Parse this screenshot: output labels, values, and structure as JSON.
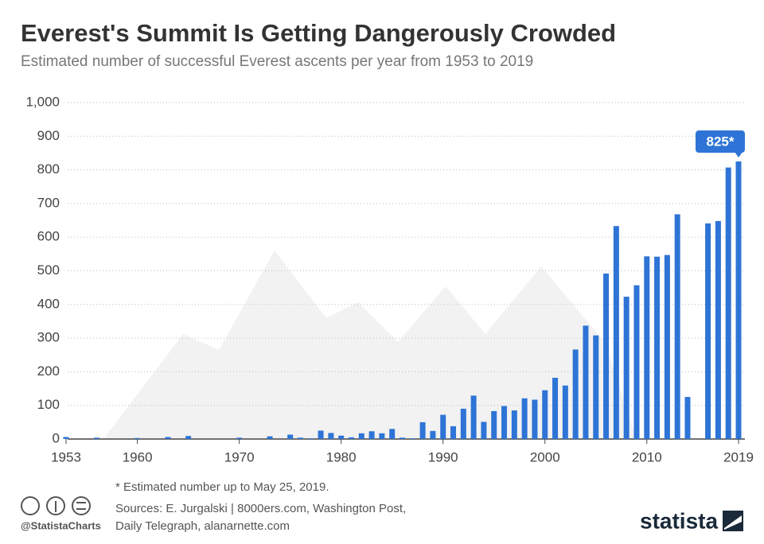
{
  "chart_data": {
    "type": "bar",
    "title": "Everest's Summit Is Getting Dangerously Crowded",
    "subtitle": "Estimated number of successful Everest ascents per year from 1953 to 2019",
    "x": [
      1953,
      1954,
      1955,
      1956,
      1957,
      1958,
      1959,
      1960,
      1961,
      1962,
      1963,
      1964,
      1965,
      1966,
      1967,
      1968,
      1969,
      1970,
      1971,
      1972,
      1973,
      1974,
      1975,
      1976,
      1977,
      1978,
      1979,
      1980,
      1981,
      1982,
      1983,
      1984,
      1985,
      1986,
      1987,
      1988,
      1989,
      1990,
      1991,
      1992,
      1993,
      1994,
      1995,
      1996,
      1997,
      1998,
      1999,
      2000,
      2001,
      2002,
      2003,
      2004,
      2005,
      2006,
      2007,
      2008,
      2009,
      2010,
      2011,
      2012,
      2013,
      2014,
      2015,
      2016,
      2017,
      2018,
      2019
    ],
    "values": [
      6,
      0,
      0,
      4,
      0,
      0,
      0,
      3,
      0,
      0,
      6,
      0,
      9,
      0,
      0,
      0,
      0,
      4,
      0,
      0,
      8,
      0,
      13,
      4,
      2,
      25,
      18,
      10,
      5,
      17,
      23,
      17,
      30,
      4,
      2,
      50,
      24,
      72,
      38,
      90,
      129,
      51,
      83,
      98,
      85,
      121,
      117,
      145,
      182,
      159,
      266,
      337,
      308,
      492,
      633,
      423,
      457,
      543,
      542,
      547,
      668,
      125,
      0,
      641,
      648,
      807,
      825
    ],
    "value_labels": [
      null,
      null,
      null,
      null,
      null,
      null,
      null,
      null,
      null,
      null,
      null,
      null,
      null,
      null,
      null,
      null,
      null,
      null,
      null,
      null,
      null,
      null,
      null,
      null,
      null,
      null,
      null,
      null,
      null,
      null,
      null,
      null,
      null,
      null,
      null,
      null,
      null,
      null,
      null,
      null,
      null,
      null,
      null,
      null,
      null,
      null,
      null,
      null,
      null,
      null,
      null,
      null,
      null,
      null,
      null,
      null,
      null,
      null,
      null,
      null,
      null,
      null,
      null,
      null,
      null,
      null,
      "825*"
    ],
    "color": "#2e74d6",
    "xlim": [
      1953,
      2019
    ],
    "xticks": [
      1953,
      1960,
      1970,
      1980,
      1990,
      2000,
      2010,
      2019
    ],
    "ylim": [
      0,
      1000
    ],
    "yticks": [
      0,
      100,
      200,
      300,
      400,
      500,
      600,
      700,
      800,
      900,
      {
        "value": 1000,
        "label": "1,000"
      }
    ],
    "grid": true,
    "footnote": "* Estimated number up to May 25, 2019.",
    "sources": [
      "Sources: E. Jurgalski | 8000ers.com, Washington Post,",
      "Daily Telegraph, alanarnette.com"
    ],
    "credit": "@StatistaCharts",
    "brand": "statista"
  }
}
